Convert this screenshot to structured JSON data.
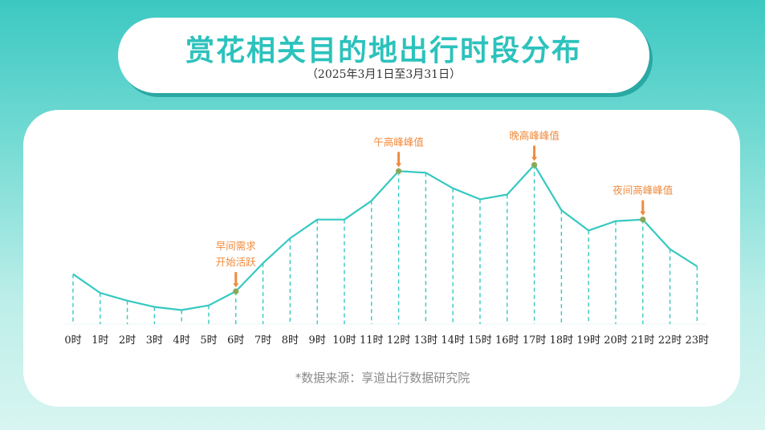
{
  "header": {
    "title": "赏花相关目的地出行时段分布",
    "subtitle": "（2025年3月1日至3月31日）"
  },
  "footer": {
    "source": "*数据来源：享道出行数据研究院"
  },
  "colors": {
    "line": "#35c9c0",
    "marker": "#8aa85a",
    "annotation": "#f08a3c",
    "tick_text": "#222222"
  },
  "chart_data": {
    "type": "line",
    "title": "赏花相关目的地出行时段分布",
    "categories": [
      "0时",
      "1时",
      "2时",
      "3时",
      "4时",
      "5时",
      "6时",
      "7时",
      "8时",
      "9时",
      "10时",
      "11时",
      "12时",
      "13时",
      "14时",
      "15时",
      "16时",
      "17时",
      "18时",
      "19时",
      "20时",
      "21时",
      "22时",
      "23时"
    ],
    "series": [
      {
        "values": [
          32,
          20,
          15,
          11,
          9,
          12,
          21,
          39,
          55,
          67,
          67,
          79,
          98,
          97,
          87,
          80,
          83,
          102,
          73,
          60,
          66,
          67,
          48,
          37
        ]
      }
    ],
    "ylim": [
      0,
      110
    ],
    "grid": false,
    "drop_lines": "dashed",
    "annotations": [
      {
        "index": 6,
        "lines": [
          "早间需求",
          "开始活跃"
        ]
      },
      {
        "index": 12,
        "lines": [
          "午高峰峰值"
        ]
      },
      {
        "index": 17,
        "lines": [
          "晚高峰峰值"
        ]
      },
      {
        "index": 21,
        "lines": [
          "夜间高峰峰值"
        ]
      }
    ]
  }
}
